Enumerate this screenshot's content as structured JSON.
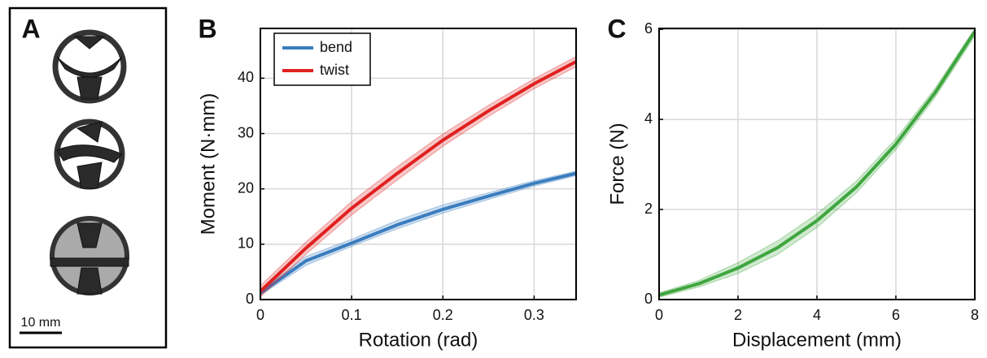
{
  "panel_a": {
    "label": "A",
    "scale_bar": "10 mm"
  },
  "chart_data": [
    {
      "type": "line",
      "panel_label": "B",
      "x_label": "Rotation (rad)",
      "y_label": "Moment (N·mm)",
      "x": [
        0,
        0.05,
        0.1,
        0.15,
        0.2,
        0.25,
        0.3,
        0.346
      ],
      "series": [
        {
          "name": "bend",
          "color": "#3a7dbf",
          "values": [
            1.2,
            7,
            10.2,
            13.5,
            16.3,
            18.7,
            21,
            22.8
          ],
          "lower": [
            0.8,
            6.2,
            9.6,
            12.8,
            15.6,
            18.1,
            20.5,
            22.4
          ],
          "upper": [
            1.6,
            7.8,
            10.9,
            14.3,
            17.1,
            19.3,
            21.5,
            23.2
          ]
        },
        {
          "name": "twist",
          "color": "#e02020",
          "values": [
            1.5,
            9.3,
            16.5,
            22.8,
            28.8,
            34.1,
            39,
            43
          ],
          "lower": [
            0.5,
            8.2,
            15.3,
            21.6,
            27.7,
            33.1,
            38.1,
            42.1
          ],
          "upper": [
            2.5,
            10.4,
            17.7,
            24,
            29.9,
            35.1,
            39.9,
            43.9
          ]
        }
      ],
      "xlim": [
        0,
        0.346
      ],
      "ylim": [
        0,
        49
      ],
      "xticks": [
        0,
        0.1,
        0.2,
        0.3
      ],
      "yticks": [
        0,
        10,
        20,
        30,
        40
      ],
      "grid": true,
      "legend": "top-left"
    },
    {
      "type": "line",
      "panel_label": "C",
      "x_label": "Displacement (mm)",
      "y_label": "Force (N)",
      "x": [
        0,
        1,
        2,
        3,
        4,
        5,
        6,
        7,
        8
      ],
      "series": [
        {
          "color": "#3fa63f",
          "values": [
            0.1,
            0.35,
            0.7,
            1.15,
            1.75,
            2.5,
            3.45,
            4.6,
            5.95
          ],
          "lower": [
            0.05,
            0.28,
            0.58,
            1.0,
            1.6,
            2.37,
            3.33,
            4.5,
            5.85
          ],
          "upper": [
            0.15,
            0.42,
            0.82,
            1.3,
            1.9,
            2.63,
            3.57,
            4.7,
            6.02
          ]
        }
      ],
      "xlim": [
        0,
        8
      ],
      "ylim": [
        0,
        6.02
      ],
      "xticks": [
        0,
        2,
        4,
        6,
        8
      ],
      "yticks": [
        0,
        2,
        4,
        6
      ],
      "grid": true
    }
  ]
}
